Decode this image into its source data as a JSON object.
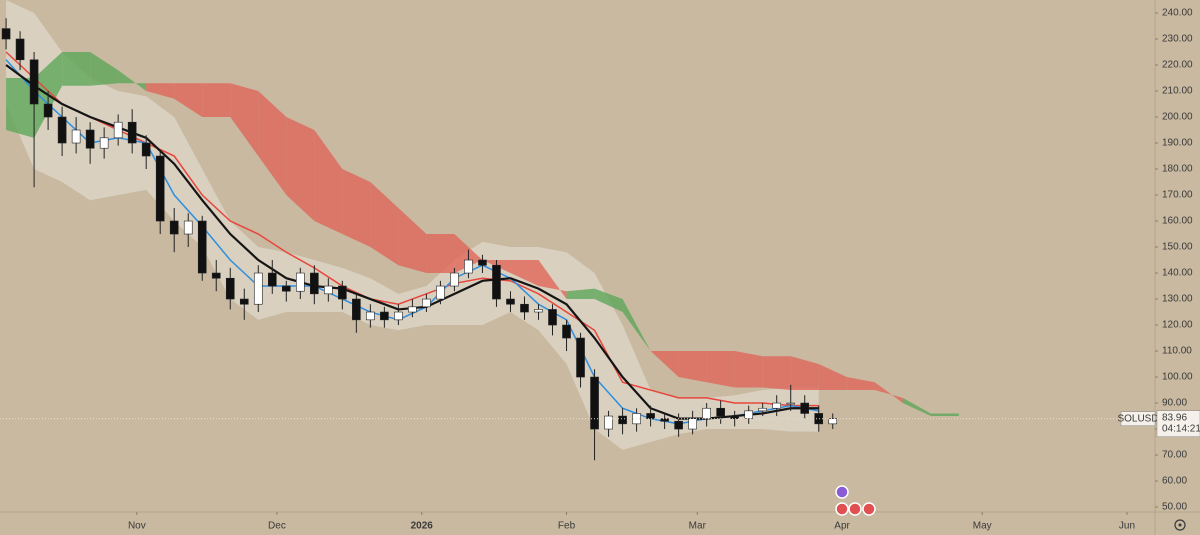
{
  "chart_data": {
    "type": "candlestick",
    "symbol": "SOLUSD",
    "last_price": 83.96,
    "countdown": "04:14:21",
    "up_color": "#ffffff",
    "down_color": "#111111",
    "x": [
      -28,
      -25,
      -22,
      -19,
      -16,
      -13,
      -10,
      -7,
      -4,
      -1,
      2,
      5,
      8,
      11,
      14,
      17,
      20,
      23,
      26,
      29,
      32,
      35,
      38,
      41,
      44,
      47,
      50,
      53,
      56,
      59,
      62,
      65,
      68,
      71,
      74,
      77,
      80,
      83,
      86,
      89,
      92,
      95,
      98,
      101,
      104,
      107,
      110,
      113,
      116,
      119,
      122,
      125,
      128,
      131,
      134,
      137,
      140,
      143,
      146,
      149
    ],
    "open": [
      234,
      230,
      222,
      205,
      200,
      190,
      195,
      188,
      192,
      198,
      190,
      185,
      160,
      155,
      160,
      140,
      138,
      130,
      128,
      140,
      135,
      133,
      140,
      132,
      135,
      130,
      122,
      125,
      122,
      125,
      127,
      130,
      135,
      140,
      145,
      143,
      130,
      128,
      125,
      126,
      120,
      115,
      100,
      80,
      85,
      82,
      86,
      84,
      83,
      80,
      84,
      88,
      85,
      84,
      87,
      88,
      90,
      90,
      86,
      82
    ],
    "high": [
      238,
      233,
      225,
      210,
      204,
      200,
      198,
      196,
      201,
      203,
      193,
      187,
      165,
      163,
      162,
      145,
      142,
      134,
      143,
      145,
      137,
      142,
      143,
      138,
      137,
      132,
      128,
      127,
      128,
      130,
      132,
      137,
      142,
      149,
      147,
      145,
      133,
      131,
      128,
      128,
      122,
      117,
      103,
      87,
      88,
      88,
      89,
      86,
      86,
      87,
      90,
      91,
      87,
      89,
      90,
      93,
      97,
      93,
      89,
      86
    ],
    "low": [
      226,
      218,
      173,
      195,
      185,
      186,
      182,
      184,
      189,
      186,
      180,
      155,
      148,
      150,
      137,
      133,
      126,
      122,
      125,
      132,
      129,
      130,
      128,
      129,
      126,
      117,
      119,
      119,
      120,
      123,
      125,
      128,
      133,
      138,
      140,
      127,
      125,
      122,
      122,
      116,
      110,
      96,
      68,
      77,
      78,
      79,
      81,
      80,
      77,
      78,
      81,
      82,
      81,
      82,
      85,
      85,
      87,
      84,
      79,
      80
    ],
    "close": [
      230,
      222,
      205,
      200,
      190,
      195,
      188,
      192,
      198,
      190,
      185,
      160,
      155,
      160,
      140,
      138,
      130,
      128,
      140,
      135,
      133,
      140,
      132,
      135,
      130,
      122,
      125,
      122,
      125,
      127,
      130,
      135,
      140,
      145,
      143,
      130,
      128,
      125,
      126,
      120,
      115,
      100,
      80,
      85,
      82,
      86,
      84,
      83,
      80,
      84,
      88,
      85,
      84,
      87,
      88,
      90,
      90,
      86,
      82,
      84
    ],
    "line_x": [
      -28,
      -22,
      -16,
      -10,
      -4,
      2,
      8,
      14,
      20,
      26,
      32,
      38,
      44,
      50,
      56,
      62,
      68,
      74,
      80,
      86,
      92,
      98,
      104,
      110,
      116,
      122,
      128,
      134,
      140,
      146
    ],
    "band": {
      "color": "#e8e3d8",
      "upper": [
        245,
        240,
        225,
        215,
        210,
        208,
        200,
        180,
        160,
        150,
        148,
        145,
        142,
        138,
        132,
        135,
        145,
        152,
        150,
        150,
        148,
        140,
        120,
        95,
        92,
        92,
        93,
        95,
        96,
        96
      ],
      "lower": [
        205,
        180,
        175,
        168,
        170,
        172,
        160,
        150,
        130,
        122,
        125,
        125,
        125,
        120,
        118,
        120,
        120,
        120,
        125,
        118,
        105,
        80,
        72,
        75,
        78,
        80,
        80,
        80,
        79,
        79
      ]
    },
    "lines": [
      {
        "color": "#e8453c",
        "values": [
          225,
          215,
          205,
          200,
          195,
          190,
          185,
          170,
          160,
          155,
          148,
          142,
          135,
          130,
          128,
          132,
          136,
          138,
          137,
          132,
          125,
          118,
          98,
          95,
          92,
          92,
          90,
          90,
          89,
          89
        ]
      },
      {
        "color": "#2e8fe0",
        "values": [
          222,
          210,
          200,
          190,
          192,
          190,
          170,
          158,
          145,
          135,
          135,
          135,
          130,
          125,
          122,
          127,
          138,
          143,
          138,
          128,
          122,
          100,
          88,
          84,
          82,
          84,
          85,
          87,
          89,
          87
        ]
      },
      {
        "color": "#151515",
        "values": [
          220,
          212,
          205,
          200,
          196,
          192,
          182,
          168,
          155,
          145,
          138,
          135,
          134,
          130,
          126,
          127,
          132,
          137,
          138,
          134,
          128,
          115,
          100,
          88,
          84,
          84,
          85,
          86,
          88,
          88
        ]
      }
    ],
    "cloud": {
      "up_color": "#5ea65a",
      "down_color": "#e0665a",
      "x": [
        -28,
        -22,
        -16,
        -10,
        -4,
        2,
        8,
        14,
        20,
        26,
        32,
        38,
        44,
        50,
        56,
        62,
        68,
        74,
        80,
        86,
        92,
        98,
        104,
        110,
        116,
        122,
        128,
        134,
        140,
        146,
        152,
        158,
        164,
        170,
        176
      ],
      "span_a": [
        215,
        215,
        225,
        225,
        218,
        210,
        207,
        200,
        200,
        185,
        170,
        160,
        155,
        150,
        143,
        140,
        140,
        145,
        140,
        135,
        133,
        134,
        130,
        110,
        100,
        98,
        96,
        96,
        95,
        95,
        95,
        95,
        92,
        86,
        86
      ],
      "span_b": [
        195,
        192,
        212,
        212,
        213,
        213,
        213,
        213,
        213,
        210,
        200,
        195,
        180,
        175,
        165,
        155,
        155,
        145,
        145,
        145,
        130,
        130,
        125,
        110,
        110,
        110,
        110,
        108,
        108,
        105,
        100,
        98,
        90,
        85,
        85
      ]
    },
    "xlim": [
      -29.3,
      218
    ],
    "xticks": [
      {
        "value": 0,
        "label": "Nov"
      },
      {
        "value": 30,
        "label": "Dec"
      },
      {
        "value": 61,
        "label": "2026"
      },
      {
        "value": 92,
        "label": "Feb"
      },
      {
        "value": 120,
        "label": "Mar"
      },
      {
        "value": 151,
        "label": "Apr"
      },
      {
        "value": 181,
        "label": "May"
      },
      {
        "value": 212,
        "label": "Jun"
      }
    ],
    "ylim": [
      48.1,
      245
    ],
    "yticks": [
      {
        "value": 240,
        "label": "240.00"
      },
      {
        "value": 230,
        "label": "230.00"
      },
      {
        "value": 220,
        "label": "220.00"
      },
      {
        "value": 210,
        "label": "210.00"
      },
      {
        "value": 200,
        "label": "200.00"
      },
      {
        "value": 190,
        "label": "190.00"
      },
      {
        "value": 180,
        "label": "180.00"
      },
      {
        "value": 170,
        "label": "170.00"
      },
      {
        "value": 160,
        "label": "160.00"
      },
      {
        "value": 150,
        "label": "150.00"
      },
      {
        "value": 140,
        "label": "140.00"
      },
      {
        "value": 130,
        "label": "130.00"
      },
      {
        "value": 120,
        "label": "120.00"
      },
      {
        "value": 110,
        "label": "110.00"
      },
      {
        "value": 100,
        "label": "100.00"
      },
      {
        "value": 90,
        "label": "90.00"
      },
      {
        "value": 80,
        "label": "80.00"
      },
      {
        "value": 70,
        "label": "70.00"
      },
      {
        "value": 60,
        "label": "60.00"
      },
      {
        "value": 50,
        "label": "50.00"
      }
    ]
  }
}
